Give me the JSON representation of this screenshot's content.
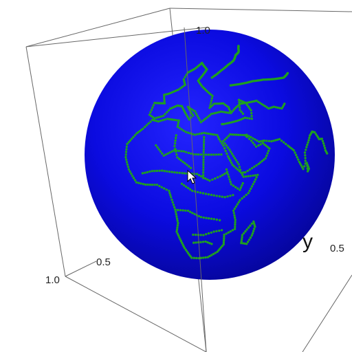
{
  "chart_data": {
    "type": "scatter",
    "kind": "3d-globe",
    "title": "",
    "surface": "unit sphere",
    "sphere_color": "#0b0bd8",
    "point_color": "#1fa01f",
    "box_color": "#666666",
    "axes": {
      "x": {
        "label": "",
        "ticks": [
          "1.0",
          "0.5"
        ]
      },
      "y": {
        "label": "y",
        "ticks": [
          "0.5"
        ]
      },
      "z": {
        "label": "",
        "ticks": [
          "1.0"
        ]
      }
    },
    "series": [
      {
        "values": "coastline points (lon, lat) — Africa, Arabian Peninsula, Europe, Asia, Madagascar"
      }
    ]
  },
  "cursor": {
    "icon": "arrow-cursor-icon"
  }
}
